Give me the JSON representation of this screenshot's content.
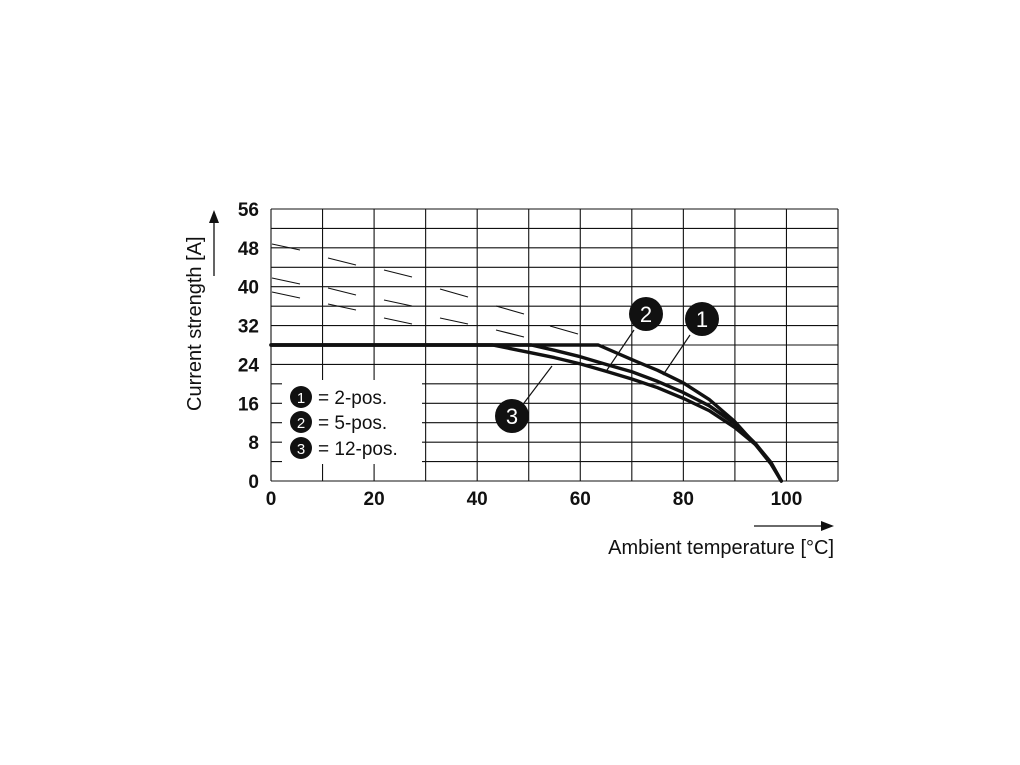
{
  "chart_data": {
    "type": "line",
    "xlabel": "Ambient temperature [°C]",
    "ylabel": "Current strength [A]",
    "xlim": [
      0,
      110
    ],
    "ylim": [
      0,
      56
    ],
    "x_ticks": [
      0,
      20,
      40,
      60,
      80,
      100
    ],
    "y_ticks": [
      0,
      8,
      16,
      24,
      32,
      40,
      48,
      56
    ],
    "x_grid_step": 10,
    "y_grid_step": 4,
    "grid": true,
    "legend_position": "bottom-left",
    "series": [
      {
        "marker": "1",
        "legend_label": "= 2-pos.",
        "x": [
          0,
          63.5,
          70,
          75,
          80,
          85,
          90,
          94,
          97,
          99
        ],
        "y": [
          28,
          28,
          25,
          22.8,
          20.2,
          16.8,
          12.2,
          7.5,
          3.5,
          0
        ]
      },
      {
        "marker": "2",
        "legend_label": "= 5-pos.",
        "x": [
          0,
          50.5,
          55,
          60,
          65,
          70,
          75,
          80,
          85,
          90,
          94,
          97,
          99
        ],
        "y": [
          28,
          28,
          26.9,
          25.6,
          24,
          22.5,
          20.5,
          18.2,
          15.5,
          11.8,
          7.7,
          3.8,
          0
        ]
      },
      {
        "marker": "3",
        "legend_label": "= 12-pos.",
        "x": [
          0,
          43,
          50,
          55,
          60,
          65,
          70,
          75,
          80,
          85,
          90,
          94,
          97,
          99
        ],
        "y": [
          28,
          28,
          26.5,
          25.4,
          24.1,
          22.6,
          21,
          19.2,
          17,
          14.5,
          11,
          7.5,
          3.7,
          0
        ]
      }
    ]
  }
}
